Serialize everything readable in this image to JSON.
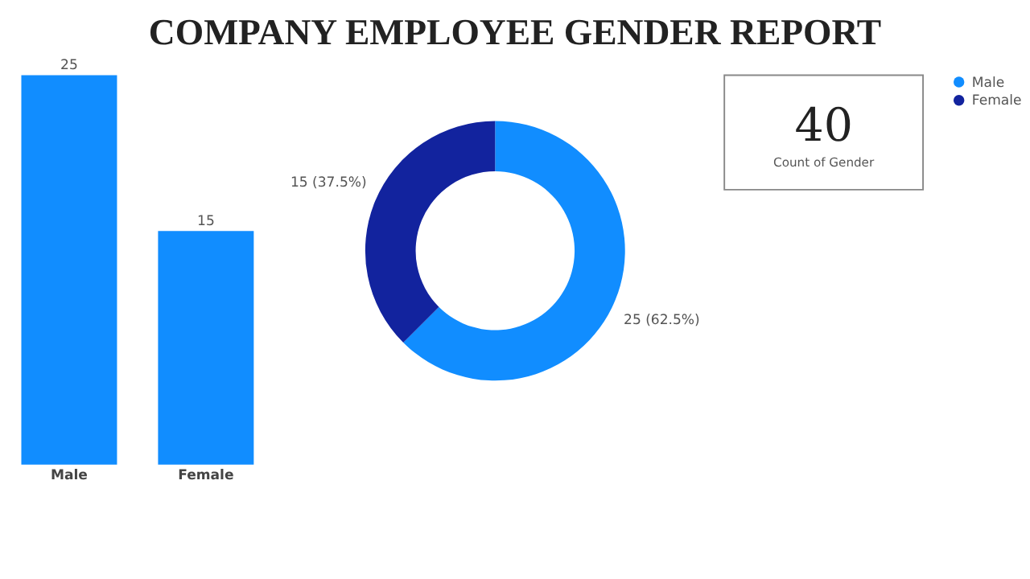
{
  "chart_data": [
    {
      "type": "bar",
      "title": "COMPANY EMPLOYEE GENDER REPORT",
      "categories": [
        "Male",
        "Female"
      ],
      "values": [
        25,
        15
      ],
      "color": "#118dff",
      "data_labels": true,
      "tick_labels": "x",
      "grid": false
    },
    {
      "type": "donut",
      "categories": [
        "Male",
        "Female"
      ],
      "values": [
        62.5,
        37.5
      ],
      "colors": [
        "#118dff",
        "#12239e"
      ],
      "value_labels": [
        "25 (62.5%)",
        "15 (37.5%)"
      ],
      "legend": "right"
    },
    {
      "type": "other",
      "values": [
        40
      ],
      "data_labels": true,
      "annotations": [
        "Count of Gender"
      ]
    }
  ]
}
